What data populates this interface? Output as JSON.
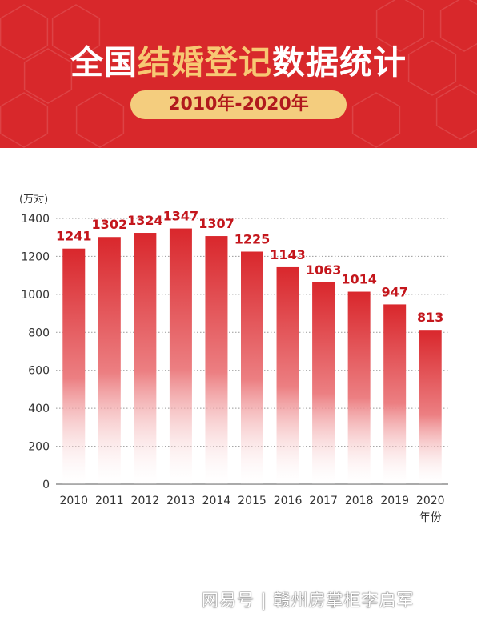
{
  "header": {
    "title_part1": "全国",
    "title_highlight": "结婚登记",
    "title_part2": "数据统计",
    "period": "2010年-2020年"
  },
  "colors": {
    "banner_red": "#d8282b",
    "highlight_gold": "#f7c873",
    "bar_red": "#d9272c",
    "label_red": "#c4161c"
  },
  "chart_data": {
    "type": "bar",
    "title": "",
    "ylabel": "(万对)",
    "xlabel": "年份",
    "categories": [
      "2010",
      "2011",
      "2012",
      "2013",
      "2014",
      "2015",
      "2016",
      "2017",
      "2018",
      "2019",
      "2020"
    ],
    "values": [
      1241,
      1302,
      1324,
      1347,
      1307,
      1225,
      1143,
      1063,
      1014,
      947,
      813
    ],
    "data_labels": [
      "1241",
      "1302",
      "1324",
      "1347",
      "1307",
      "1225",
      "1143",
      "1063",
      "1014",
      "947",
      "813"
    ],
    "ylim": [
      0,
      1400
    ],
    "yticks": [
      "0",
      "200",
      "400",
      "600",
      "800",
      "1000",
      "1200",
      "1400"
    ],
    "grid": "horizontal dotted",
    "legend": "none"
  },
  "watermark": "网易号 | 赣州房掌柜李启军"
}
